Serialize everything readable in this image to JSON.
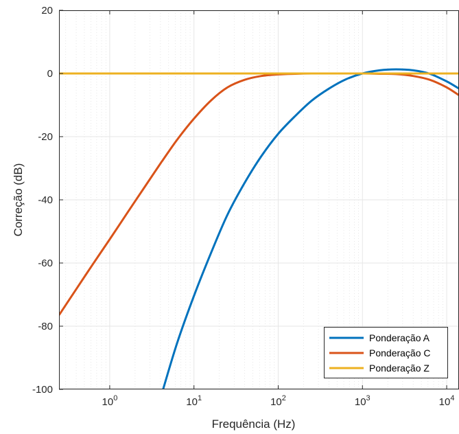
{
  "chart_data": {
    "type": "line",
    "xlabel": "Frequência (Hz)",
    "ylabel": "Correção (dB)",
    "xscale": "log",
    "xlim": [
      0.25,
      14000
    ],
    "ylim": [
      -100,
      20
    ],
    "yticks": [
      {
        "value": 20,
        "label": "20"
      },
      {
        "value": 0,
        "label": "0"
      },
      {
        "value": -20,
        "label": "-20"
      },
      {
        "value": -40,
        "label": "-40"
      },
      {
        "value": -60,
        "label": "-60"
      },
      {
        "value": -80,
        "label": "-80"
      },
      {
        "value": -100,
        "label": "-100"
      }
    ],
    "xticks": [
      {
        "value": 1,
        "base": "10",
        "exp": "0"
      },
      {
        "value": 10,
        "base": "10",
        "exp": "1"
      },
      {
        "value": 100,
        "base": "10",
        "exp": "2"
      },
      {
        "value": 1000,
        "base": "10",
        "exp": "3"
      },
      {
        "value": 10000,
        "base": "10",
        "exp": "4"
      }
    ],
    "grid": true,
    "minor_grid": true,
    "legend_position": "bottom-right",
    "x": [
      0.25,
      0.4,
      0.63,
      1,
      1.6,
      2.5,
      4,
      4.3,
      6.3,
      10,
      16,
      25,
      40,
      63,
      100,
      160,
      250,
      400,
      630,
      1000,
      1600,
      2500,
      4000,
      6300,
      10000,
      14000
    ],
    "series": [
      {
        "name": "Ponderação A",
        "color": "#0072BD",
        "values": [
          null,
          null,
          null,
          null,
          null,
          null,
          null,
          -100,
          -85.4,
          -70.4,
          -56.7,
          -44.7,
          -34.6,
          -26.2,
          -19.1,
          -13.4,
          -8.6,
          -4.8,
          -1.9,
          0.0,
          1.0,
          1.3,
          1.0,
          -0.1,
          -2.5,
          -4.8
        ]
      },
      {
        "name": "Ponderação C",
        "color": "#D95319",
        "values": [
          -76.5,
          -68.3,
          -60.4,
          -52.5,
          -44.3,
          -36.6,
          -28.5,
          -27.3,
          -21.0,
          -14.3,
          -8.5,
          -4.4,
          -2.0,
          -0.8,
          -0.3,
          -0.1,
          0.0,
          0.0,
          0.0,
          0.0,
          -0.1,
          -0.2,
          -0.8,
          -2.0,
          -4.4,
          -6.9
        ]
      },
      {
        "name": "Ponderação Z",
        "color": "#EDB120",
        "values": [
          0,
          0,
          0,
          0,
          0,
          0,
          0,
          0,
          0,
          0,
          0,
          0,
          0,
          0,
          0,
          0,
          0,
          0,
          0,
          0,
          0,
          0,
          0,
          0,
          0,
          0
        ]
      }
    ]
  }
}
